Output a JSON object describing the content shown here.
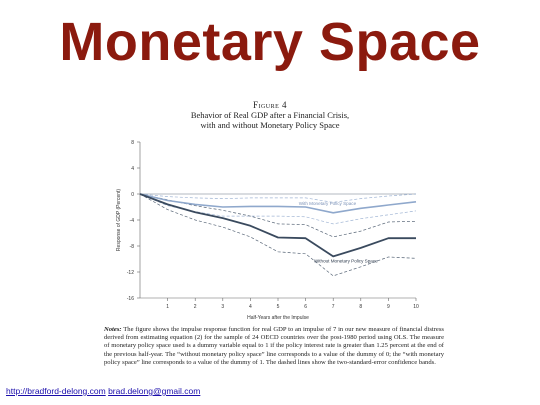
{
  "slide": {
    "title": "Monetary Space"
  },
  "figure": {
    "label": "Figure 4",
    "caption_line1": "Behavior of Real GDP after a Financial Crisis,",
    "caption_line2": "with and without Monetary Policy Space"
  },
  "notes": {
    "lead": "Notes:",
    "text": " The figure shows the impulse response function for real GDP to an impulse of 7 in our new measure of financial distress derived from estimating equation (2) for the sample of 24 OECD countries over the post-1980 period using OLS. The measure of monetary policy space used is a dummy variable equal to 1 if the policy interest rate is greater than 1.25 percent at the end of the previous half-year. The “without monetary policy space” line corresponds to a value of the dummy of 0; the “with monetary policy space” line corresponds to a value of the dummy of 1. The dashed lines show the two-standard-error confidence bands."
  },
  "links": {
    "link1": "http://bradford-delong.com",
    "link2": "brad.delong@gmail.com"
  },
  "chart_data": {
    "type": "line",
    "xlabel": "Half-Years after the Impulse",
    "ylabel": "Response of GDP (Percent)",
    "xlim": [
      0,
      10
    ],
    "ylim": [
      -16,
      8
    ],
    "xticks": [
      1,
      2,
      3,
      4,
      5,
      6,
      7,
      8,
      9,
      10
    ],
    "yticks": [
      8,
      4,
      0,
      -4,
      -8,
      -12,
      -16
    ],
    "x": [
      0,
      1,
      2,
      3,
      4,
      5,
      6,
      7,
      8,
      9,
      10
    ],
    "series": [
      {
        "name": "With Monetary Policy Space",
        "color": "#8fa8cc",
        "values": [
          0,
          -1.0,
          -1.6,
          -2.0,
          -1.9,
          -1.9,
          -2.0,
          -2.9,
          -2.2,
          -1.7,
          -1.2
        ],
        "upper": [
          0,
          -0.4,
          -0.6,
          -0.7,
          -0.6,
          -0.6,
          -0.6,
          -1.3,
          -0.7,
          -0.3,
          0.0
        ],
        "lower": [
          0,
          -1.8,
          -2.7,
          -3.4,
          -3.4,
          -3.4,
          -3.5,
          -4.6,
          -3.8,
          -3.2,
          -2.6
        ]
      },
      {
        "name": "Without Monetary Policy Space",
        "color": "#3a4a5e",
        "values": [
          0,
          -1.6,
          -2.8,
          -3.7,
          -4.9,
          -6.7,
          -6.8,
          -9.6,
          -8.3,
          -6.8,
          -6.8
        ],
        "upper": [
          0,
          -0.9,
          -1.8,
          -2.5,
          -3.4,
          -4.6,
          -4.7,
          -6.6,
          -5.7,
          -4.3,
          -4.2
        ],
        "lower": [
          0,
          -2.4,
          -4.0,
          -5.1,
          -6.6,
          -8.9,
          -9.2,
          -12.6,
          -11.2,
          -9.7,
          -9.9
        ]
      }
    ]
  }
}
